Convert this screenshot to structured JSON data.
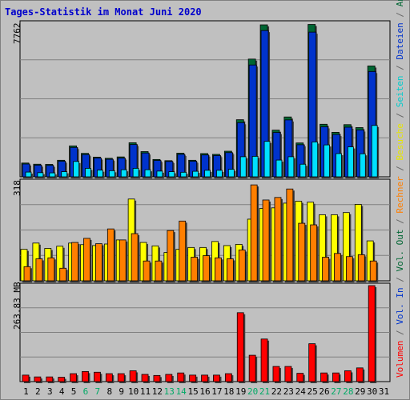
{
  "chart_data": {
    "type": "bar",
    "title": "Tages-Statistik im Monat Juni 2020",
    "days": [
      "1",
      "2",
      "3",
      "4",
      "5",
      "6",
      "7",
      "8",
      "9",
      "10",
      "11",
      "12",
      "13",
      "14",
      "15",
      "16",
      "17",
      "18",
      "19",
      "20",
      "21",
      "22",
      "23",
      "24",
      "25",
      "26",
      "27",
      "28",
      "29",
      "30",
      "31"
    ],
    "weekend_days": [
      "6",
      "7",
      "13",
      "14",
      "20",
      "21",
      "27",
      "28"
    ],
    "panels": [
      {
        "name": "top",
        "ylabel_max": "7762",
        "ymax": 7762,
        "series": [
          {
            "name": "Anfragen",
            "color": "#006633",
            "values": [
              700,
              640,
              630,
              840,
              1570,
              1190,
              1000,
              940,
              1010,
              1730,
              1280,
              880,
              820,
              1200,
              840,
              1180,
              1140,
              1300,
              2900,
              5980,
              7720,
              2370,
              3040,
              1720,
              7740,
              2670,
              2260,
              2650,
              2500,
              5630,
              0
            ]
          },
          {
            "name": "Dateien",
            "color": "#0033cc",
            "values": [
              650,
              590,
              580,
              790,
              1490,
              1130,
              950,
              890,
              950,
              1640,
              1210,
              830,
              780,
              1140,
              790,
              1110,
              1080,
              1230,
              2750,
              5680,
              7430,
              2250,
              2890,
              1630,
              7350,
              2540,
              2150,
              2520,
              2380,
              5350,
              0
            ]
          },
          {
            "name": "Seiten",
            "color": "#00e0ff",
            "values": [
              240,
              210,
              200,
              260,
              780,
              430,
              340,
              310,
              360,
              430,
              360,
              290,
              260,
              230,
              280,
              330,
              330,
              380,
              1020,
              1040,
              1800,
              850,
              1020,
              640,
              1770,
              1620,
              1180,
              1520,
              1170,
              2610,
              0
            ]
          }
        ]
      },
      {
        "name": "middle",
        "ylabel_max": "318",
        "ymax": 318,
        "series": [
          {
            "name": "Besuche",
            "color": "#ffff00",
            "values": [
              100,
              120,
              103,
              110,
              120,
              115,
              112,
              117,
              130,
              260,
              122,
              111,
              90,
              100,
              106,
              106,
              125,
              112,
              116,
              196,
              230,
              232,
              247,
              253,
              250,
              210,
              210,
              217,
              243,
              127,
              0
            ]
          },
          {
            "name": "Rechner",
            "color": "#ff7f00",
            "values": [
              45,
              70,
              73,
              40,
              122,
              135,
              118,
              165,
              130,
              150,
              63,
              63,
              160,
              190,
              75,
              80,
              73,
              70,
              98,
              305,
              257,
              265,
              292,
              183,
              178,
              75,
              87,
              77,
              83,
              63,
              0
            ]
          }
        ]
      },
      {
        "name": "bottom",
        "ylabel_max": "263.83 MB",
        "ymax": 263.83,
        "series": [
          {
            "name": "Volumen",
            "color": "#ff0000",
            "values": [
              18,
              13,
              13,
              12,
              22,
              28,
              26,
              22,
              22,
              30,
              20,
              17,
              20,
              24,
              18,
              18,
              18,
              22,
              191,
              73,
              118,
              42,
              42,
              23,
              105,
              24,
              24,
              30,
              38,
              266,
              0
            ]
          }
        ]
      }
    ],
    "right_legend": [
      {
        "text": "Volumen",
        "color": "#ff0000"
      },
      {
        "text": " / ",
        "color": "#666666"
      },
      {
        "text": "Vol. In",
        "color": "#0033cc"
      },
      {
        "text": " / ",
        "color": "#666666"
      },
      {
        "text": "Vol. Out",
        "color": "#006633"
      },
      {
        "text": " / ",
        "color": "#666666"
      },
      {
        "text": "Rechner",
        "color": "#ff7f00"
      },
      {
        "text": " / ",
        "color": "#666666"
      },
      {
        "text": "Besuche",
        "color": "#e6e600"
      },
      {
        "text": " / ",
        "color": "#666666"
      },
      {
        "text": "Seiten",
        "color": "#00cccc"
      },
      {
        "text": " / ",
        "color": "#666666"
      },
      {
        "text": "Dateien",
        "color": "#0033cc"
      },
      {
        "text": " / ",
        "color": "#666666"
      },
      {
        "text": "Anfragen",
        "color": "#006633"
      }
    ]
  }
}
